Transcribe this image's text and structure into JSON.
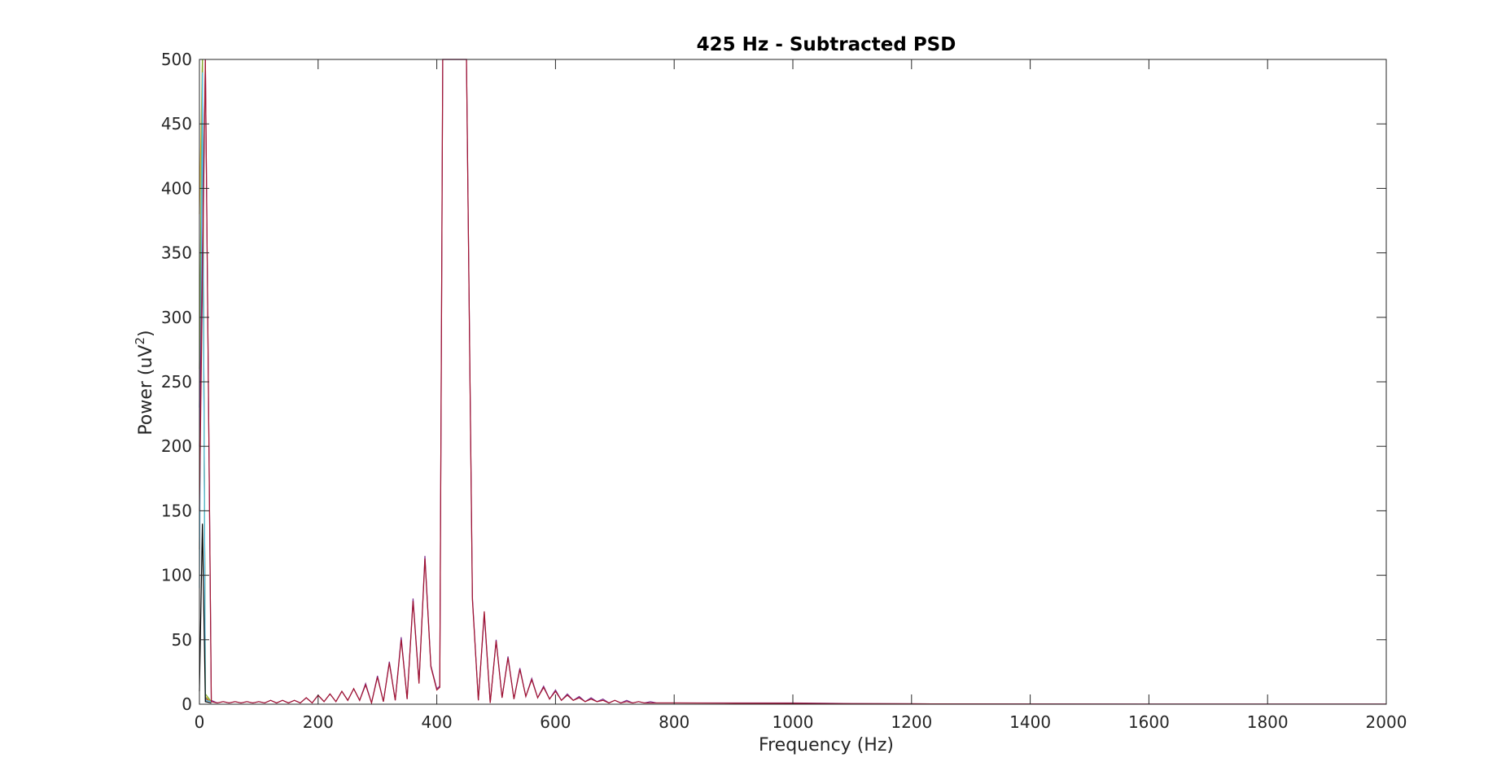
{
  "chart_data": {
    "type": "line",
    "title": "425 Hz - Subtracted PSD",
    "xlabel": "Frequency (Hz)",
    "ylabel_text": "Power (uV",
    "ylabel_sup": "2",
    "ylabel_close": ")",
    "xlim": [
      0,
      2000
    ],
    "ylim": [
      0,
      500
    ],
    "xticks": [
      0,
      200,
      400,
      600,
      800,
      1000,
      1200,
      1400,
      1600,
      1800,
      2000
    ],
    "yticks": [
      0,
      50,
      100,
      150,
      200,
      250,
      300,
      350,
      400,
      450,
      500
    ],
    "grid": false,
    "series": [
      {
        "color": "#7e2f8e",
        "x": [
          0,
          10,
          20,
          30,
          40,
          50,
          60,
          70,
          80,
          90,
          100,
          110,
          120,
          130,
          140,
          150,
          160,
          170,
          180,
          190,
          200,
          210,
          220,
          230,
          240,
          250,
          260,
          270,
          280,
          290,
          300,
          310,
          320,
          330,
          340,
          350,
          360,
          370,
          380,
          390,
          400,
          405,
          410,
          450,
          460,
          470,
          480,
          490,
          500,
          510,
          520,
          530,
          540,
          550,
          560,
          570,
          580,
          590,
          600,
          610,
          620,
          630,
          640,
          650,
          660,
          670,
          680,
          690,
          700,
          710,
          720,
          730,
          740,
          750,
          760,
          770,
          780,
          790,
          800,
          900,
          1000,
          1100,
          1200,
          1400,
          1600,
          1800,
          2000
        ],
        "y": [
          200,
          500,
          3,
          1,
          2,
          1,
          2,
          1,
          2,
          1,
          2,
          1,
          3,
          1,
          3,
          1,
          3,
          1,
          5,
          1,
          7,
          2,
          8,
          2,
          10,
          3,
          12,
          3,
          16,
          1,
          22,
          2,
          33,
          3,
          52,
          4,
          82,
          17,
          115,
          30,
          12,
          14,
          500,
          500,
          83,
          3,
          70,
          1,
          50,
          5,
          37,
          4,
          28,
          6,
          20,
          5,
          14,
          4,
          11,
          3,
          8,
          3,
          6,
          2,
          5,
          2,
          4,
          1,
          3,
          1,
          3,
          1,
          2,
          1,
          2,
          1,
          1,
          1,
          1,
          1,
          1,
          0.5,
          0.3,
          0.2,
          0.1,
          0.1,
          0.1
        ]
      },
      {
        "color": "#a2142f",
        "x": [
          0,
          10,
          20,
          30,
          40,
          50,
          60,
          70,
          80,
          90,
          100,
          110,
          120,
          130,
          140,
          150,
          160,
          170,
          180,
          190,
          200,
          210,
          220,
          230,
          240,
          250,
          260,
          270,
          280,
          290,
          300,
          310,
          320,
          330,
          340,
          350,
          360,
          370,
          380,
          390,
          400,
          405,
          410,
          450,
          460,
          470,
          480,
          490,
          500,
          510,
          520,
          530,
          540,
          550,
          560,
          570,
          580,
          590,
          600,
          610,
          620,
          630,
          640,
          650,
          660,
          670,
          680,
          690,
          700,
          710,
          720,
          730,
          740,
          750,
          760,
          770,
          780,
          790,
          800,
          900,
          1000,
          1100,
          1200,
          1400,
          1600,
          1800,
          2000
        ],
        "y": [
          150,
          500,
          2,
          1,
          2,
          1,
          2,
          1,
          2,
          1,
          2,
          1,
          3,
          1,
          3,
          1,
          3,
          1,
          5,
          1,
          7,
          2,
          8,
          2,
          10,
          3,
          12,
          3,
          15,
          1,
          21,
          2,
          32,
          3,
          50,
          4,
          80,
          16,
          113,
          29,
          11,
          13,
          500,
          500,
          81,
          3,
          72,
          1,
          49,
          5,
          36,
          4,
          27,
          6,
          19,
          5,
          13,
          4,
          10,
          3,
          7,
          3,
          5,
          2,
          4,
          2,
          3,
          1,
          3,
          1,
          2,
          1,
          2,
          1,
          1,
          1,
          1,
          1,
          1,
          0.8,
          0.7,
          0.4,
          0.3,
          0.2,
          0.1,
          0.1,
          0.1
        ]
      }
    ],
    "dc_spikes": [
      {
        "color": "#0072bd",
        "y": [
          230,
          480,
          5,
          2
        ]
      },
      {
        "color": "#d95319",
        "y": [
          120,
          500,
          4,
          2
        ]
      },
      {
        "color": "#edb120",
        "y": [
          380,
          500,
          6,
          2
        ]
      },
      {
        "color": "#77ac30",
        "y": [
          260,
          500,
          8,
          2
        ]
      },
      {
        "color": "#4dbeee",
        "y": [
          90,
          490,
          3,
          2
        ]
      },
      {
        "color": "#000000",
        "y": [
          10,
          140,
          2,
          1
        ]
      }
    ]
  }
}
